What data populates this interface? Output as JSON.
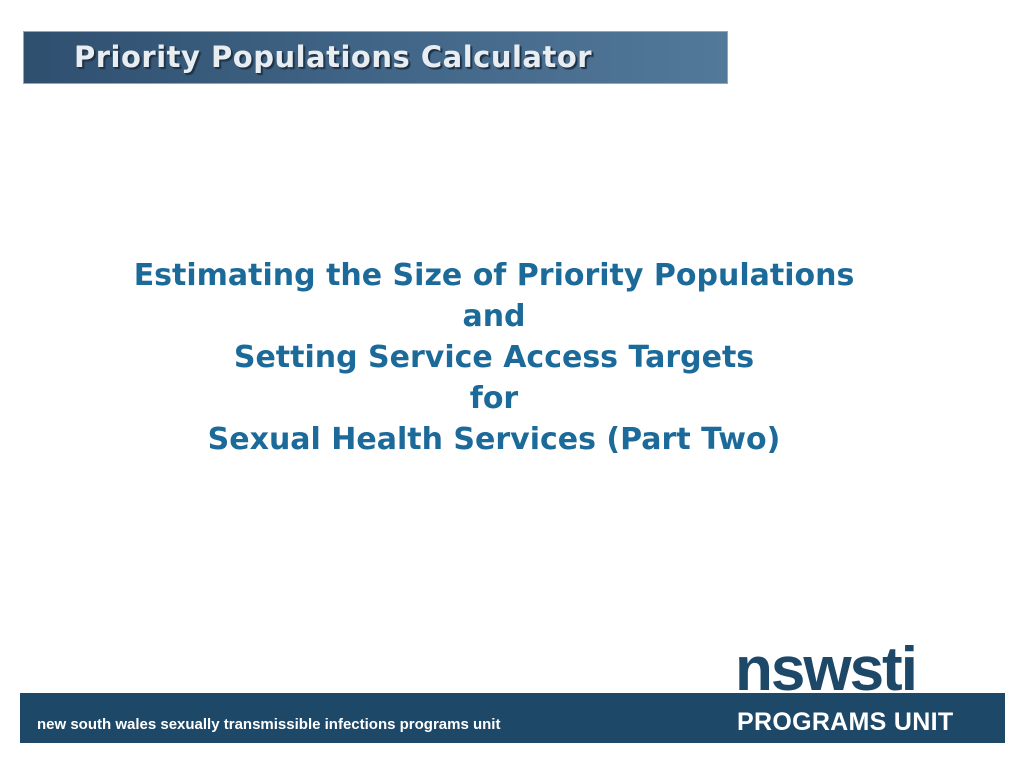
{
  "header": {
    "title": "Priority Populations Calculator"
  },
  "main": {
    "heading_lines": [
      "Estimating the Size of Priority Populations",
      "and",
      "Setting Service Access Targets",
      "for",
      "Sexual Health Services (Part Two)"
    ]
  },
  "footer": {
    "org_text": "new south wales sexually transmissible infections programs unit",
    "logo_wordmark": "nswsti",
    "logo_subtitle": "PROGRAMS UNIT"
  },
  "colors": {
    "title_bar": "#3f6384",
    "heading_text": "#1b6a99",
    "footer_band": "#1e4868"
  }
}
